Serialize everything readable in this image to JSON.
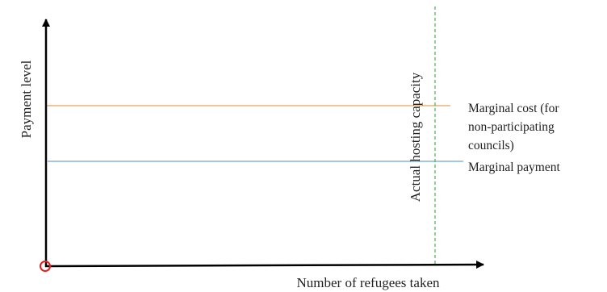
{
  "diagram": {
    "y_axis_label": "Payment level",
    "x_axis_label": "Number of refugees taken",
    "marginal_cost_label_lines": [
      "Marginal cost (for",
      "non-participating",
      "councils)"
    ],
    "marginal_payment_label": "Marginal payment",
    "capacity_label": "Actual hosting capacity",
    "colors": {
      "axis": "#000000",
      "marginal_cost_line": "#e8a25a",
      "marginal_payment_line": "#6aa6d6",
      "capacity_line": "#4cae4c",
      "origin_marker": "#e02020",
      "text": "#222222"
    }
  }
}
